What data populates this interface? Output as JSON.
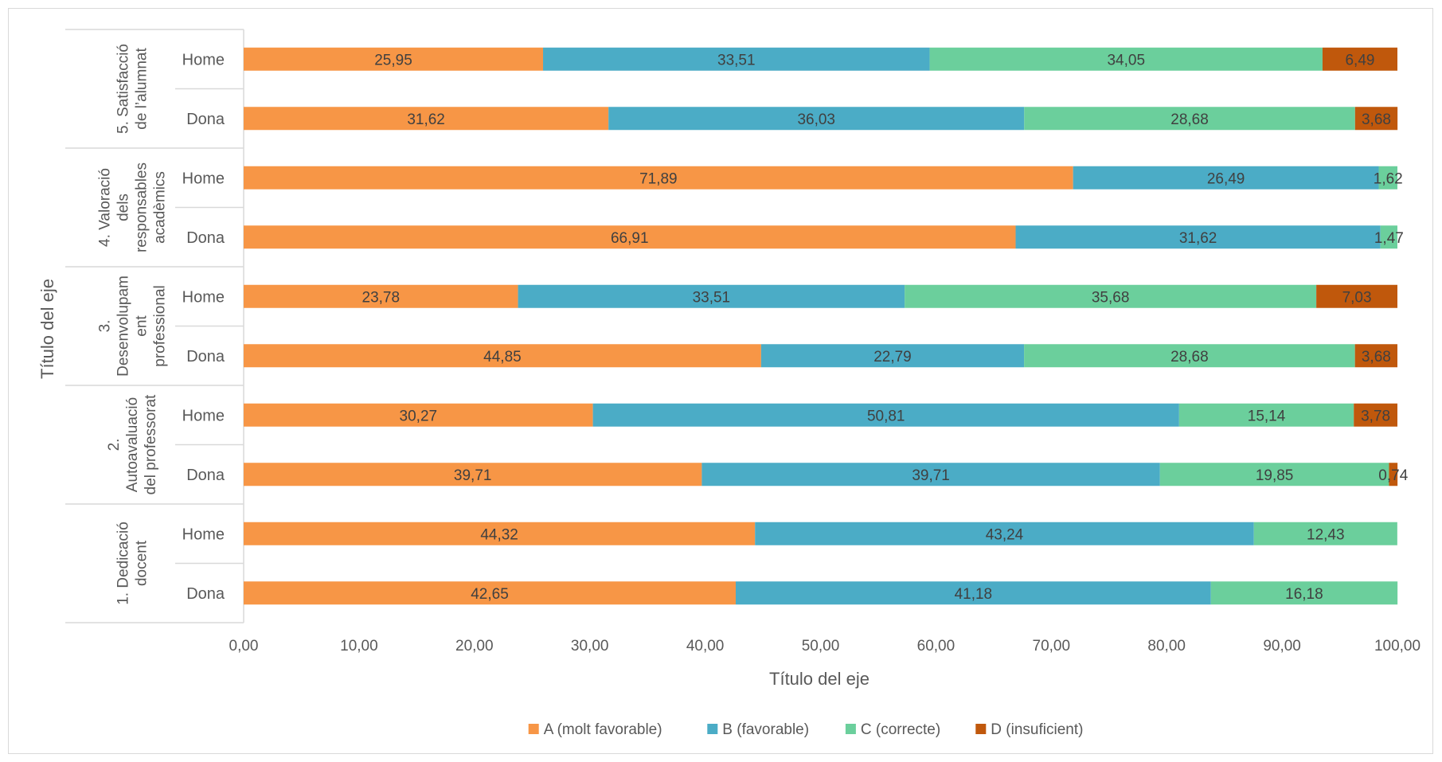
{
  "chart_data": {
    "type": "bar",
    "orientation": "horizontal",
    "stacked": true,
    "xlabel": "Título del eje",
    "ylabel": "Título del eje",
    "xlim": [
      0,
      100
    ],
    "xticks": [
      "0,00",
      "10,00",
      "20,00",
      "30,00",
      "40,00",
      "50,00",
      "60,00",
      "70,00",
      "80,00",
      "90,00",
      "100,00"
    ],
    "legend_position": "bottom",
    "grid": false,
    "groups": [
      {
        "label_lines": [
          "5. Satisfacció",
          "de l’alumnat"
        ]
      },
      {
        "label_lines": [
          "4. Valoració",
          "dels",
          "responsables",
          "acadèmics"
        ]
      },
      {
        "label_lines": [
          "3.",
          "Desenvolupam",
          "ent",
          "professional"
        ]
      },
      {
        "label_lines": [
          "2.",
          "Autoavaluació",
          "del professorat"
        ]
      },
      {
        "label_lines": [
          "1. Dedicació",
          "docent"
        ]
      }
    ],
    "categories": [
      "Home",
      "Dona",
      "Home",
      "Dona",
      "Home",
      "Dona",
      "Home",
      "Dona",
      "Home",
      "Dona"
    ],
    "series": [
      {
        "name": "A (molt favorable)",
        "color": "#F79646",
        "values": [
          25.95,
          31.62,
          71.89,
          66.91,
          23.78,
          44.85,
          30.27,
          39.71,
          44.32,
          42.65
        ],
        "labels": [
          "25,95",
          "31,62",
          "71,89",
          "66,91",
          "23,78",
          "44,85",
          "30,27",
          "39,71",
          "44,32",
          "42,65"
        ]
      },
      {
        "name": "B (favorable)",
        "color": "#4BACC6",
        "values": [
          33.51,
          36.03,
          26.49,
          31.62,
          33.51,
          22.79,
          50.81,
          39.71,
          43.24,
          41.18
        ],
        "labels": [
          "33,51",
          "36,03",
          "26,49",
          "31,62",
          "33,51",
          "22,79",
          "50,81",
          "39,71",
          "43,24",
          "41,18"
        ]
      },
      {
        "name": "C (correcte)",
        "color": "#6BCF9C",
        "values": [
          34.05,
          28.68,
          1.62,
          1.47,
          35.68,
          28.68,
          15.14,
          19.85,
          12.43,
          16.18
        ],
        "labels": [
          "34,05",
          "28,68",
          "1,62",
          "1,47",
          "35,68",
          "28,68",
          "15,14",
          "19,85",
          "12,43",
          "16,18"
        ]
      },
      {
        "name": "D (insuficient)",
        "color": "#C0580C",
        "values": [
          6.49,
          3.68,
          0,
          0,
          7.03,
          3.68,
          3.78,
          0.74,
          0,
          0
        ],
        "labels": [
          "6,49",
          "3,68",
          "",
          "",
          "7,03",
          "3,68",
          "3,78",
          "0,74",
          "",
          ""
        ]
      }
    ]
  }
}
